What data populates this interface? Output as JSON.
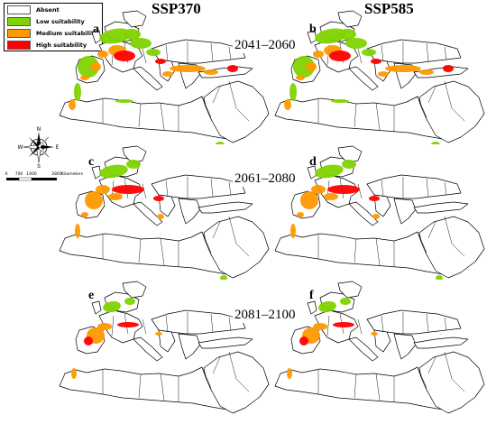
{
  "legend": {
    "items": [
      {
        "label": "Absent",
        "color": "#ffffff"
      },
      {
        "label": "Low suitability",
        "color": "#7fd400"
      },
      {
        "label": "Medium suitability",
        "color": "#ff9900"
      },
      {
        "label": "High suitability",
        "color": "#ff0000"
      }
    ]
  },
  "scenarios": {
    "left": "SSP370",
    "right": "SSP585"
  },
  "periods": [
    "2041–2060",
    "2061–2080",
    "2081–2100"
  ],
  "panels": [
    {
      "letter": "a",
      "scenario": "SSP370",
      "period": "2041–2060",
      "suitability": "high-extent"
    },
    {
      "letter": "b",
      "scenario": "SSP585",
      "period": "2041–2060",
      "suitability": "high-extent"
    },
    {
      "letter": "c",
      "scenario": "SSP370",
      "period": "2061–2080",
      "suitability": "medium-extent"
    },
    {
      "letter": "d",
      "scenario": "SSP585",
      "period": "2061–2080",
      "suitability": "medium-extent"
    },
    {
      "letter": "e",
      "scenario": "SSP370",
      "period": "2081–2100",
      "suitability": "reduced-extent"
    },
    {
      "letter": "f",
      "scenario": "SSP585",
      "period": "2081–2100",
      "suitability": "reduced-extent"
    }
  ],
  "compass": {
    "n": "N",
    "s": "S",
    "e": "E",
    "w": "W"
  },
  "scale": {
    "ticks": [
      "0",
      "700",
      "1400",
      "2800"
    ],
    "unit": "Kilometers"
  }
}
